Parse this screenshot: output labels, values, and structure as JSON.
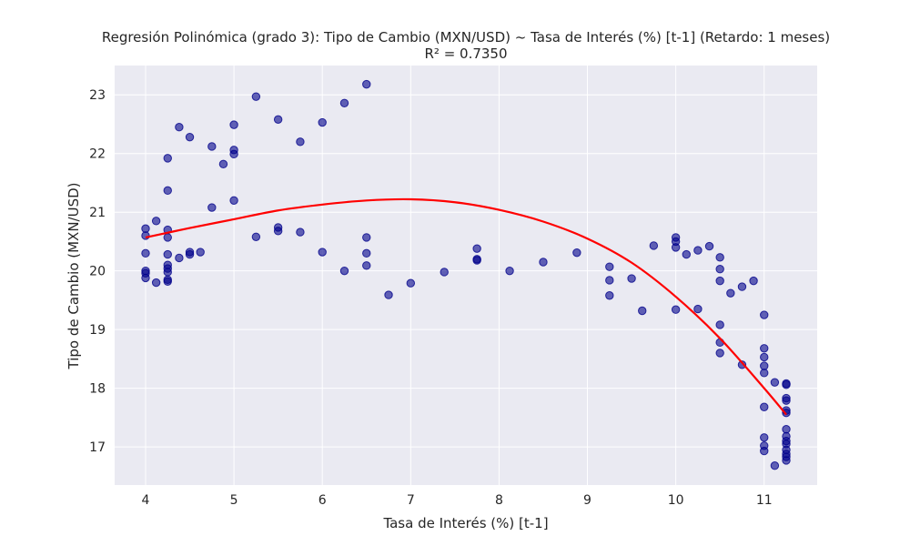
{
  "chart_data": {
    "type": "scatter",
    "title": "Regresión Polinómica (grado 3): Tipo de Cambio (MXN/USD) ~ Tasa de Interés (%) [t-1] (Retardo: 1 meses)",
    "subtitle": "R² = 0.7350",
    "xlabel": "Tasa de Interés (%) [t-1]",
    "ylabel": "Tipo de Cambio (MXN/USD)",
    "xlim": [
      3.65,
      11.6
    ],
    "ylim": [
      16.35,
      23.5
    ],
    "xticks": [
      4,
      5,
      6,
      7,
      8,
      9,
      10,
      11
    ],
    "yticks": [
      17,
      18,
      19,
      20,
      21,
      22,
      23
    ],
    "grid": true,
    "colors": {
      "points": "#00008b",
      "fit": "#ff0000",
      "background": "#eaeaf2"
    },
    "points": [
      [
        4.0,
        20.72
      ],
      [
        4.0,
        20.6
      ],
      [
        4.0,
        20.3
      ],
      [
        4.0,
        20.0
      ],
      [
        4.0,
        19.96
      ],
      [
        4.0,
        19.88
      ],
      [
        4.12,
        20.85
      ],
      [
        4.12,
        19.8
      ],
      [
        4.25,
        21.92
      ],
      [
        4.25,
        21.37
      ],
      [
        4.25,
        20.7
      ],
      [
        4.25,
        20.57
      ],
      [
        4.25,
        20.28
      ],
      [
        4.25,
        20.1
      ],
      [
        4.25,
        20.04
      ],
      [
        4.25,
        19.98
      ],
      [
        4.25,
        19.85
      ],
      [
        4.25,
        19.82
      ],
      [
        4.38,
        22.45
      ],
      [
        4.38,
        20.22
      ],
      [
        4.5,
        22.28
      ],
      [
        4.5,
        20.32
      ],
      [
        4.5,
        20.28
      ],
      [
        4.62,
        20.32
      ],
      [
        4.75,
        22.12
      ],
      [
        4.75,
        21.08
      ],
      [
        4.88,
        21.82
      ],
      [
        5.0,
        22.49
      ],
      [
        5.0,
        22.06
      ],
      [
        5.0,
        21.99
      ],
      [
        5.0,
        21.2
      ],
      [
        5.25,
        22.97
      ],
      [
        5.25,
        20.58
      ],
      [
        5.5,
        22.58
      ],
      [
        5.5,
        20.74
      ],
      [
        5.5,
        20.68
      ],
      [
        5.75,
        22.2
      ],
      [
        5.75,
        20.66
      ],
      [
        6.0,
        22.53
      ],
      [
        6.0,
        20.32
      ],
      [
        6.25,
        22.86
      ],
      [
        6.25,
        20.0
      ],
      [
        6.5,
        23.18
      ],
      [
        6.5,
        20.57
      ],
      [
        6.5,
        20.3
      ],
      [
        6.5,
        20.09
      ],
      [
        6.75,
        19.59
      ],
      [
        7.0,
        19.79
      ],
      [
        7.38,
        19.98
      ],
      [
        7.75,
        20.38
      ],
      [
        7.75,
        20.2
      ],
      [
        7.75,
        20.18
      ],
      [
        8.12,
        20.0
      ],
      [
        8.5,
        20.15
      ],
      [
        8.88,
        20.31
      ],
      [
        9.25,
        20.07
      ],
      [
        9.25,
        19.84
      ],
      [
        9.25,
        19.58
      ],
      [
        9.5,
        19.87
      ],
      [
        9.62,
        19.32
      ],
      [
        9.75,
        20.43
      ],
      [
        10.0,
        20.57
      ],
      [
        10.0,
        20.5
      ],
      [
        10.0,
        20.4
      ],
      [
        10.0,
        19.34
      ],
      [
        10.12,
        20.28
      ],
      [
        10.25,
        20.35
      ],
      [
        10.25,
        19.35
      ],
      [
        10.38,
        20.42
      ],
      [
        10.5,
        20.23
      ],
      [
        10.5,
        20.03
      ],
      [
        10.5,
        19.83
      ],
      [
        10.5,
        19.08
      ],
      [
        10.5,
        18.78
      ],
      [
        10.5,
        18.6
      ],
      [
        10.62,
        19.62
      ],
      [
        10.75,
        19.73
      ],
      [
        10.75,
        18.4
      ],
      [
        10.88,
        19.83
      ],
      [
        11.0,
        19.25
      ],
      [
        11.0,
        18.68
      ],
      [
        11.0,
        18.53
      ],
      [
        11.0,
        18.38
      ],
      [
        11.0,
        18.26
      ],
      [
        11.0,
        17.68
      ],
      [
        11.0,
        17.16
      ],
      [
        11.0,
        17.02
      ],
      [
        11.0,
        16.93
      ],
      [
        11.12,
        18.1
      ],
      [
        11.12,
        16.68
      ],
      [
        11.25,
        18.08
      ],
      [
        11.25,
        18.06
      ],
      [
        11.25,
        17.83
      ],
      [
        11.25,
        17.79
      ],
      [
        11.25,
        17.62
      ],
      [
        11.25,
        17.58
      ],
      [
        11.25,
        17.3
      ],
      [
        11.25,
        17.18
      ],
      [
        11.25,
        17.1
      ],
      [
        11.25,
        17.05
      ],
      [
        11.25,
        16.95
      ],
      [
        11.25,
        16.88
      ],
      [
        11.25,
        16.83
      ],
      [
        11.25,
        16.77
      ]
    ],
    "fit_line": [
      [
        4.0,
        20.57
      ],
      [
        4.5,
        20.73
      ],
      [
        5.0,
        20.88
      ],
      [
        5.5,
        21.03
      ],
      [
        6.0,
        21.13
      ],
      [
        6.5,
        21.2
      ],
      [
        7.0,
        21.22
      ],
      [
        7.5,
        21.17
      ],
      [
        8.0,
        21.04
      ],
      [
        8.5,
        20.84
      ],
      [
        9.0,
        20.55
      ],
      [
        9.5,
        20.14
      ],
      [
        10.0,
        19.56
      ],
      [
        10.5,
        18.85
      ],
      [
        11.0,
        18.0
      ],
      [
        11.25,
        17.55
      ]
    ]
  }
}
